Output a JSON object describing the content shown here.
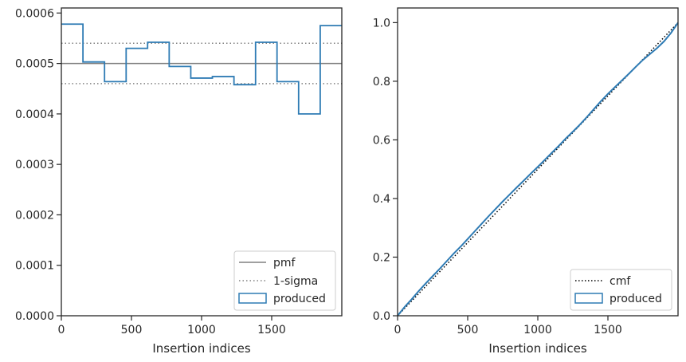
{
  "chart_data": [
    {
      "type": "step",
      "xlabel": "Insertion indices",
      "ylabel": "",
      "xlim": [
        0,
        2000
      ],
      "ylim": [
        0,
        0.00061
      ],
      "xticks": [
        0,
        500,
        1000,
        1500
      ],
      "yticks": [
        0.0,
        0.0001,
        0.0002,
        0.0003,
        0.0004,
        0.0005,
        0.0006
      ],
      "ytick_labels": [
        "0.0000",
        "0.0001",
        "0.0002",
        "0.0003",
        "0.0004",
        "0.0005",
        "0.0006"
      ],
      "grid": false,
      "legend": "lower-right",
      "series": [
        {
          "name": "pmf",
          "style": "solid",
          "color": "#808080",
          "value": 0.0005
        },
        {
          "name": "1-sigma",
          "style": "dotted",
          "color": "#808080",
          "values": [
            0.00046,
            0.00054
          ]
        },
        {
          "name": "produced",
          "style": "step",
          "color": "#2e7bb4",
          "edges": [
            0,
            154,
            308,
            462,
            615,
            769,
            923,
            1077,
            1231,
            1385,
            1538,
            1692,
            1846,
            2000
          ],
          "values": [
            0.000578,
            0.000503,
            0.000464,
            0.00053,
            0.000542,
            0.000494,
            0.000471,
            0.000474,
            0.000458,
            0.000542,
            0.000464,
            0.0004,
            0.000575
          ]
        }
      ]
    },
    {
      "type": "line",
      "xlabel": "Insertion indices",
      "ylabel": "",
      "xlim": [
        0,
        2000
      ],
      "ylim": [
        0,
        1.05
      ],
      "xticks": [
        0,
        500,
        1000,
        1500
      ],
      "yticks": [
        0.0,
        0.2,
        0.4,
        0.6,
        0.8,
        1.0
      ],
      "ytick_labels": [
        "0.0",
        "0.2",
        "0.4",
        "0.6",
        "0.8",
        "1.0"
      ],
      "grid": false,
      "legend": "lower-right",
      "series": [
        {
          "name": "cmf",
          "style": "dotted",
          "color": "#000000",
          "x": [
            0,
            2000
          ],
          "y": [
            0,
            1.0
          ]
        },
        {
          "name": "produced",
          "style": "step",
          "color": "#2e7bb4",
          "x": [
            0,
            50,
            100,
            150,
            200,
            250,
            300,
            350,
            400,
            450,
            500,
            550,
            600,
            650,
            700,
            750,
            800,
            850,
            900,
            950,
            1000,
            1050,
            1100,
            1150,
            1200,
            1250,
            1300,
            1350,
            1400,
            1450,
            1500,
            1550,
            1600,
            1650,
            1700,
            1750,
            1800,
            1850,
            1900,
            1950,
            2000
          ],
          "y": [
            0.0,
            0.03,
            0.056,
            0.084,
            0.11,
            0.135,
            0.16,
            0.186,
            0.212,
            0.236,
            0.262,
            0.288,
            0.314,
            0.34,
            0.365,
            0.39,
            0.414,
            0.438,
            0.461,
            0.485,
            0.508,
            0.532,
            0.556,
            0.58,
            0.605,
            0.628,
            0.652,
            0.678,
            0.705,
            0.732,
            0.757,
            0.78,
            0.803,
            0.826,
            0.85,
            0.873,
            0.893,
            0.913,
            0.936,
            0.965,
            1.0
          ]
        }
      ]
    }
  ]
}
